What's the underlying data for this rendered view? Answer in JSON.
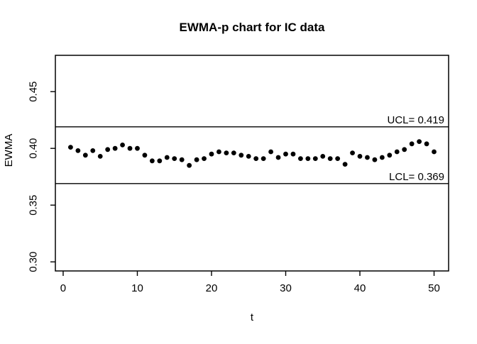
{
  "figure": {
    "background": "#ffffff",
    "foreground": "#000000"
  },
  "chart_data": {
    "type": "scatter",
    "title": "EWMA-p chart for IC data",
    "xlabel": "t",
    "ylabel": "EWMA",
    "point_color": "#000000",
    "line_color": "#000000",
    "grid": false,
    "legend": "none",
    "xlim": [
      -1.05,
      51.96
    ],
    "ylim": [
      0.292,
      0.482
    ],
    "x_ticks": [
      0,
      10,
      20,
      30,
      40,
      50
    ],
    "x_tick_labels": [
      "0",
      "10",
      "20",
      "30",
      "40",
      "50"
    ],
    "y_ticks": [
      0.3,
      0.35,
      0.4,
      0.45
    ],
    "y_tick_labels": [
      "0.30",
      "0.35",
      "0.40",
      "0.45"
    ],
    "ucl": 0.419,
    "lcl": 0.369,
    "ucl_label": "UCL= 0.419",
    "lcl_label": "LCL= 0.369",
    "x": [
      1,
      2,
      3,
      4,
      5,
      6,
      7,
      8,
      9,
      10,
      11,
      12,
      13,
      14,
      15,
      16,
      17,
      18,
      19,
      20,
      21,
      22,
      23,
      24,
      25,
      26,
      27,
      28,
      29,
      30,
      31,
      32,
      33,
      34,
      35,
      36,
      37,
      38,
      39,
      40,
      41,
      42,
      43,
      44,
      45,
      46,
      47,
      48,
      49,
      50
    ],
    "y": [
      0.401,
      0.398,
      0.394,
      0.398,
      0.393,
      0.399,
      0.4,
      0.403,
      0.4,
      0.4,
      0.394,
      0.389,
      0.389,
      0.392,
      0.391,
      0.39,
      0.385,
      0.39,
      0.391,
      0.395,
      0.397,
      0.396,
      0.396,
      0.394,
      0.393,
      0.391,
      0.391,
      0.397,
      0.392,
      0.395,
      0.395,
      0.391,
      0.391,
      0.391,
      0.393,
      0.391,
      0.391,
      0.386,
      0.396,
      0.393,
      0.392,
      0.39,
      0.392,
      0.394,
      0.397,
      0.399,
      0.404,
      0.406,
      0.404,
      0.397
    ]
  }
}
